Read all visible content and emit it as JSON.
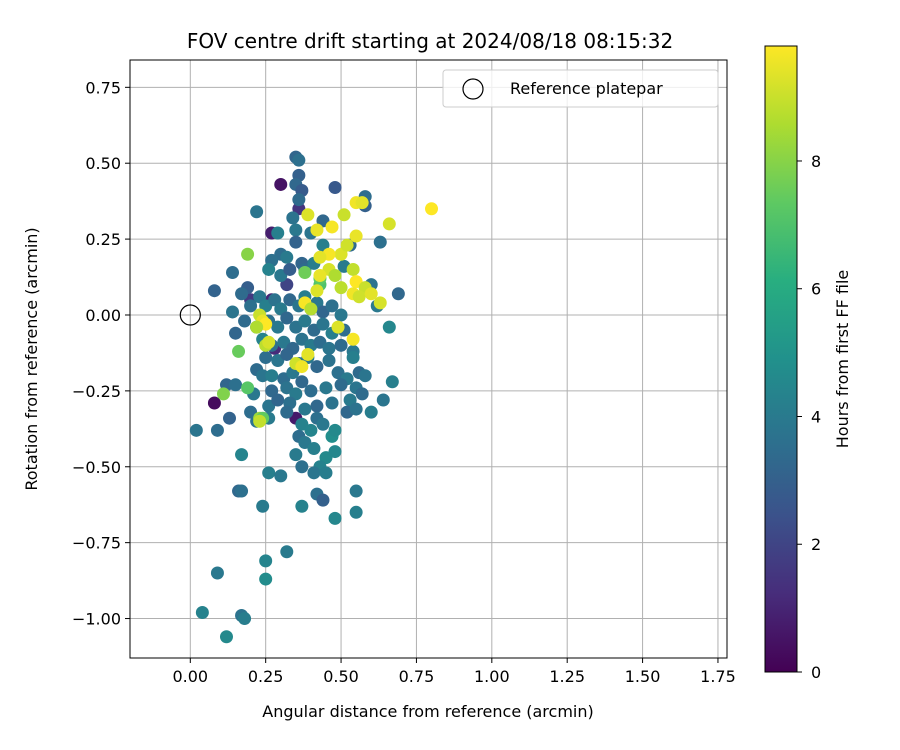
{
  "chart_data": {
    "type": "scatter",
    "title": "FOV centre drift starting at 2024/08/18 08:15:32",
    "xlabel": "Angular distance from reference (arcmin)",
    "ylabel": "Rotation from reference (arcmin)",
    "xlim": [
      -0.2,
      1.78
    ],
    "ylim": [
      -1.13,
      0.84
    ],
    "xticks": [
      0.0,
      0.25,
      0.5,
      0.75,
      1.0,
      1.25,
      1.5,
      1.75
    ],
    "xtick_labels": [
      "0.00",
      "0.25",
      "0.50",
      "0.75",
      "1.00",
      "1.25",
      "1.50",
      "1.75"
    ],
    "yticks": [
      0.75,
      0.5,
      0.25,
      0.0,
      -0.25,
      -0.5,
      -0.75,
      -1.0
    ],
    "ytick_labels": [
      "0.75",
      "0.50",
      "0.25",
      "0.00",
      "−0.25",
      "−0.50",
      "−0.75",
      "−1.00"
    ],
    "grid": true,
    "legend": {
      "location": "top-right",
      "entries": [
        {
          "label": "Reference platepar",
          "marker": "open-circle"
        }
      ]
    },
    "reference_point": {
      "x": 0.0,
      "y": 0.0
    },
    "colorbar": {
      "label": "Hours from first FF file",
      "colormap": "viridis",
      "range": [
        0,
        9.8
      ],
      "ticks": [
        0,
        2,
        4,
        6,
        8
      ],
      "tick_labels": [
        "0",
        "2",
        "4",
        "6",
        "8"
      ]
    },
    "series": [
      {
        "columns": [
          "x",
          "y",
          "hours"
        ],
        "points": [
          [
            0.3,
            0.43,
            0.5
          ],
          [
            0.27,
            0.27,
            0.8
          ],
          [
            0.08,
            -0.29,
            0.3
          ],
          [
            0.35,
            -0.34,
            0.7
          ],
          [
            0.28,
            -0.11,
            1.2
          ],
          [
            0.36,
            0.35,
            1.5
          ],
          [
            0.27,
            0.05,
            1.0
          ],
          [
            0.32,
            0.1,
            2.0
          ],
          [
            0.2,
            0.05,
            1.6
          ],
          [
            0.35,
            0.52,
            3.2
          ],
          [
            0.36,
            0.51,
            3.6
          ],
          [
            0.36,
            0.46,
            3.0
          ],
          [
            0.35,
            0.43,
            3.3
          ],
          [
            0.37,
            0.41,
            2.8
          ],
          [
            0.36,
            0.38,
            3.4
          ],
          [
            0.34,
            0.32,
            3.7
          ],
          [
            0.35,
            0.28,
            3.9
          ],
          [
            0.35,
            0.24,
            3.1
          ],
          [
            0.22,
            0.34,
            3.8
          ],
          [
            0.29,
            0.27,
            4.2
          ],
          [
            0.3,
            0.2,
            3.5
          ],
          [
            0.32,
            0.19,
            4.0
          ],
          [
            0.27,
            0.18,
            3.6
          ],
          [
            0.37,
            0.17,
            3.2
          ],
          [
            0.26,
            0.15,
            4.3
          ],
          [
            0.3,
            0.13,
            3.9
          ],
          [
            0.33,
            0.15,
            2.9
          ],
          [
            0.38,
            0.15,
            3.4
          ],
          [
            0.41,
            0.17,
            4.1
          ],
          [
            0.44,
            0.31,
            3.3
          ],
          [
            0.48,
            0.42,
            2.7
          ],
          [
            0.58,
            0.39,
            3.5
          ],
          [
            0.4,
            0.27,
            3.8
          ],
          [
            0.44,
            0.23,
            4.2
          ],
          [
            0.53,
            0.23,
            3.4
          ],
          [
            0.58,
            0.36,
            3.0
          ],
          [
            0.63,
            0.24,
            3.6
          ],
          [
            0.51,
            0.16,
            4.0
          ],
          [
            0.6,
            0.1,
            3.7
          ],
          [
            0.69,
            0.07,
            3.3
          ],
          [
            0.62,
            0.03,
            3.9
          ],
          [
            0.66,
            -0.04,
            4.5
          ],
          [
            0.08,
            0.08,
            3.1
          ],
          [
            0.14,
            0.14,
            3.5
          ],
          [
            0.19,
            0.09,
            2.9
          ],
          [
            0.17,
            0.07,
            3.4
          ],
          [
            0.2,
            0.03,
            3.6
          ],
          [
            0.23,
            0.06,
            3.9
          ],
          [
            0.25,
            0.03,
            4.2
          ],
          [
            0.28,
            0.05,
            3.7
          ],
          [
            0.3,
            0.02,
            4.0
          ],
          [
            0.33,
            0.05,
            3.3
          ],
          [
            0.36,
            0.03,
            3.8
          ],
          [
            0.38,
            0.06,
            4.1
          ],
          [
            0.4,
            0.02,
            3.5
          ],
          [
            0.42,
            0.04,
            3.9
          ],
          [
            0.44,
            0.01,
            3.2
          ],
          [
            0.47,
            0.03,
            3.6
          ],
          [
            0.5,
            0.0,
            3.9
          ],
          [
            0.14,
            0.01,
            3.8
          ],
          [
            0.18,
            -0.02,
            3.4
          ],
          [
            0.22,
            -0.04,
            4.1
          ],
          [
            0.26,
            -0.02,
            3.6
          ],
          [
            0.29,
            -0.04,
            3.9
          ],
          [
            0.32,
            -0.01,
            3.3
          ],
          [
            0.35,
            -0.04,
            3.7
          ],
          [
            0.38,
            -0.02,
            4.0
          ],
          [
            0.41,
            -0.05,
            3.4
          ],
          [
            0.44,
            -0.03,
            3.8
          ],
          [
            0.47,
            -0.06,
            4.2
          ],
          [
            0.51,
            -0.05,
            3.5
          ],
          [
            0.15,
            -0.06,
            3.2
          ],
          [
            0.24,
            -0.08,
            4.3
          ],
          [
            0.27,
            -0.1,
            3.6
          ],
          [
            0.31,
            -0.09,
            3.9
          ],
          [
            0.34,
            -0.11,
            3.3
          ],
          [
            0.37,
            -0.08,
            3.7
          ],
          [
            0.4,
            -0.1,
            4.0
          ],
          [
            0.43,
            -0.09,
            3.5
          ],
          [
            0.46,
            -0.11,
            3.8
          ],
          [
            0.5,
            -0.1,
            3.4
          ],
          [
            0.54,
            -0.12,
            3.9
          ],
          [
            0.54,
            -0.14,
            4.2
          ],
          [
            0.25,
            -0.14,
            3.5
          ],
          [
            0.29,
            -0.15,
            3.8
          ],
          [
            0.32,
            -0.13,
            3.2
          ],
          [
            0.36,
            -0.16,
            3.6
          ],
          [
            0.39,
            -0.14,
            3.9
          ],
          [
            0.42,
            -0.17,
            3.3
          ],
          [
            0.46,
            -0.15,
            3.7
          ],
          [
            0.22,
            -0.18,
            3.4
          ],
          [
            0.24,
            -0.2,
            3.8
          ],
          [
            0.27,
            -0.2,
            4.1
          ],
          [
            0.31,
            -0.21,
            3.5
          ],
          [
            0.34,
            -0.19,
            3.9
          ],
          [
            0.37,
            -0.22,
            3.3
          ],
          [
            0.49,
            -0.19,
            3.6
          ],
          [
            0.52,
            -0.21,
            4.0
          ],
          [
            0.56,
            -0.19,
            3.4
          ],
          [
            0.58,
            -0.2,
            3.8
          ],
          [
            0.12,
            -0.23,
            3.2
          ],
          [
            0.15,
            -0.23,
            3.6
          ],
          [
            0.21,
            -0.26,
            3.9
          ],
          [
            0.27,
            -0.25,
            3.3
          ],
          [
            0.32,
            -0.24,
            3.7
          ],
          [
            0.35,
            -0.26,
            4.0
          ],
          [
            0.4,
            -0.25,
            3.5
          ],
          [
            0.45,
            -0.24,
            3.9
          ],
          [
            0.5,
            -0.23,
            3.4
          ],
          [
            0.55,
            -0.24,
            3.8
          ],
          [
            0.67,
            -0.22,
            4.2
          ],
          [
            0.2,
            -0.32,
            3.5
          ],
          [
            0.26,
            -0.3,
            3.8
          ],
          [
            0.29,
            -0.28,
            3.2
          ],
          [
            0.33,
            -0.29,
            3.6
          ],
          [
            0.38,
            -0.31,
            3.9
          ],
          [
            0.42,
            -0.3,
            3.3
          ],
          [
            0.47,
            -0.29,
            3.7
          ],
          [
            0.53,
            -0.28,
            4.0
          ],
          [
            0.57,
            -0.26,
            3.4
          ],
          [
            0.64,
            -0.28,
            3.8
          ],
          [
            0.13,
            -0.34,
            3.1
          ],
          [
            0.22,
            -0.35,
            3.7
          ],
          [
            0.26,
            -0.34,
            4.0
          ],
          [
            0.32,
            -0.32,
            3.4
          ],
          [
            0.37,
            -0.36,
            4.3
          ],
          [
            0.42,
            -0.34,
            3.6
          ],
          [
            0.44,
            -0.36,
            3.9
          ],
          [
            0.52,
            -0.32,
            3.3
          ],
          [
            0.55,
            -0.31,
            3.7
          ],
          [
            0.6,
            -0.32,
            4.1
          ],
          [
            0.4,
            -0.38,
            4.4
          ],
          [
            0.47,
            -0.4,
            4.8
          ],
          [
            0.48,
            -0.38,
            4.6
          ],
          [
            0.36,
            -0.4,
            3.5
          ],
          [
            0.38,
            -0.42,
            3.9
          ],
          [
            0.41,
            -0.44,
            4.2
          ],
          [
            0.45,
            -0.47,
            4.6
          ],
          [
            0.43,
            -0.5,
            4.3
          ],
          [
            0.41,
            -0.52,
            3.8
          ],
          [
            0.45,
            -0.52,
            4.1
          ],
          [
            0.48,
            -0.45,
            4.5
          ],
          [
            0.35,
            -0.46,
            4.0
          ],
          [
            0.37,
            -0.5,
            3.6
          ],
          [
            0.17,
            -0.46,
            4.4
          ],
          [
            0.02,
            -0.38,
            3.8
          ],
          [
            0.09,
            -0.38,
            3.5
          ],
          [
            0.26,
            -0.52,
            4.2
          ],
          [
            0.3,
            -0.53,
            3.9
          ],
          [
            0.16,
            -0.58,
            3.3
          ],
          [
            0.17,
            -0.58,
            3.6
          ],
          [
            0.24,
            -0.63,
            4.0
          ],
          [
            0.37,
            -0.63,
            4.3
          ],
          [
            0.42,
            -0.59,
            3.6
          ],
          [
            0.44,
            -0.61,
            3.0
          ],
          [
            0.55,
            -0.58,
            3.9
          ],
          [
            0.55,
            -0.65,
            4.2
          ],
          [
            0.48,
            -0.67,
            4.5
          ],
          [
            0.32,
            -0.78,
            4.0
          ],
          [
            0.25,
            -0.81,
            4.4
          ],
          [
            0.25,
            -0.87,
            4.7
          ],
          [
            0.09,
            -0.85,
            3.9
          ],
          [
            0.04,
            -0.98,
            4.3
          ],
          [
            0.17,
            -0.99,
            3.7
          ],
          [
            0.18,
            -1.0,
            4.1
          ],
          [
            0.12,
            -1.06,
            4.6
          ],
          [
            0.16,
            -0.12,
            7.5
          ],
          [
            0.19,
            -0.24,
            7.2
          ],
          [
            0.11,
            -0.26,
            7.9
          ],
          [
            0.19,
            0.2,
            8.0
          ],
          [
            0.38,
            0.14,
            7.6
          ],
          [
            0.43,
            0.1,
            7.0
          ],
          [
            0.43,
            0.12,
            7.3
          ],
          [
            0.23,
            -0.34,
            8.3
          ],
          [
            0.24,
            -0.34,
            7.4
          ],
          [
            0.42,
            0.28,
            9.5
          ],
          [
            0.47,
            0.29,
            9.7
          ],
          [
            0.5,
            0.2,
            9.3
          ],
          [
            0.55,
            0.37,
            9.6
          ],
          [
            0.57,
            0.37,
            9.4
          ],
          [
            0.8,
            0.35,
            9.8
          ],
          [
            0.66,
            0.3,
            9.2
          ],
          [
            0.51,
            0.33,
            9.0
          ],
          [
            0.39,
            0.33,
            9.3
          ],
          [
            0.55,
            0.26,
            9.5
          ],
          [
            0.52,
            0.23,
            9.1
          ],
          [
            0.46,
            0.2,
            9.7
          ],
          [
            0.43,
            0.19,
            9.4
          ],
          [
            0.54,
            0.15,
            8.9
          ],
          [
            0.46,
            0.15,
            9.2
          ],
          [
            0.43,
            0.13,
            9.5
          ],
          [
            0.48,
            0.13,
            8.6
          ],
          [
            0.55,
            0.11,
            9.8
          ],
          [
            0.58,
            0.09,
            9.0
          ],
          [
            0.42,
            0.08,
            9.3
          ],
          [
            0.5,
            0.09,
            8.8
          ],
          [
            0.54,
            0.07,
            9.6
          ],
          [
            0.56,
            0.06,
            9.1
          ],
          [
            0.6,
            0.07,
            9.4
          ],
          [
            0.63,
            0.04,
            9.2
          ],
          [
            0.38,
            0.04,
            9.7
          ],
          [
            0.4,
            0.02,
            8.7
          ],
          [
            0.23,
            0.0,
            9.0
          ],
          [
            0.24,
            -0.02,
            9.5
          ],
          [
            0.25,
            -0.03,
            9.8
          ],
          [
            0.22,
            -0.04,
            8.6
          ],
          [
            0.49,
            -0.04,
            9.3
          ],
          [
            0.54,
            -0.08,
            9.7
          ],
          [
            0.39,
            -0.13,
            9.4
          ],
          [
            0.35,
            -0.16,
            9.1
          ],
          [
            0.37,
            -0.17,
            9.6
          ],
          [
            0.25,
            -0.1,
            8.8
          ],
          [
            0.26,
            -0.09,
            9.2
          ],
          [
            0.23,
            -0.35,
            8.9
          ]
        ]
      }
    ]
  }
}
